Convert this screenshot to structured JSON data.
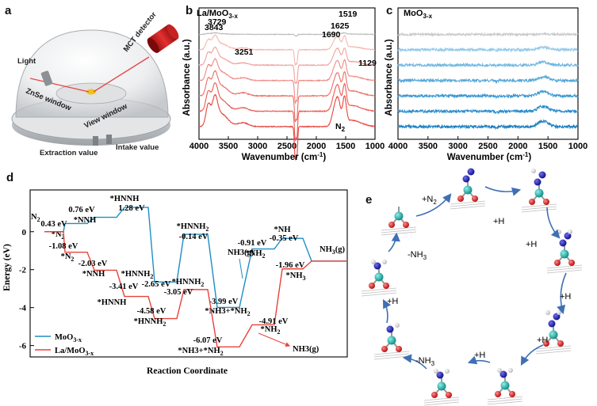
{
  "panels": {
    "a": "a",
    "b": "b",
    "c": "c",
    "d": "d",
    "e": "e"
  },
  "schematic": {
    "light": "Light",
    "znse_window": "ZnSe window",
    "view_window": "View window",
    "mct_detector": "MCT detector",
    "extraction_valve": "Extraction value",
    "intake_valve": "Intake value"
  },
  "colors": {
    "blue": "#1d8fc4",
    "red": "#e8423c",
    "grey": "#bdbdbd",
    "n2_gas": "#1a1aa8",
    "mo_atom": "#20b2aa",
    "o_atom": "#dd2020",
    "h_atom": "#f0f0f0"
  },
  "chart_data": [
    {
      "id": "b",
      "type": "line",
      "title": "La/MoO3-x",
      "title_main": "La/MoO",
      "title_sub": "3-x",
      "xlabel_main": "Wavenumber (cm",
      "xlabel_sup": "-1",
      "xlabel_end": ")",
      "ylabel": "Absorbance (a.u.)",
      "xlim": [
        4000,
        1000
      ],
      "xticks": [
        4000,
        3500,
        3000,
        2500,
        2000,
        1500,
        1000
      ],
      "series_count": 7,
      "series_colors": [
        "#e8423c",
        "#ea5a52",
        "#ec6f66",
        "#ef8a82",
        "#f1a39c",
        "#f4b8b2",
        "#bdbdbd"
      ],
      "series_labels": [
        "",
        "",
        "",
        "",
        "",
        "",
        "N2"
      ],
      "bottom_label_main": "N",
      "bottom_label_sub": "2",
      "peaks": [
        {
          "x": 3843,
          "label": "3843"
        },
        {
          "x": 3729,
          "label": "3729"
        },
        {
          "x": 3251,
          "label": "3251"
        },
        {
          "x": 1690,
          "label": "1690"
        },
        {
          "x": 1625,
          "label": "1625"
        },
        {
          "x": 1519,
          "label": "1519"
        },
        {
          "x": 1129,
          "label": "1129"
        }
      ]
    },
    {
      "id": "c",
      "type": "line",
      "title": "MoO3-x",
      "title_main": "MoO",
      "title_sub": "3-x",
      "xlabel_main": "Wavenumber (cm",
      "xlabel_sup": "-1",
      "xlabel_end": ")",
      "ylabel": "Absorbance (a.u.)",
      "xlim": [
        4000,
        1000
      ],
      "xticks": [
        4000,
        3500,
        3000,
        2500,
        2000,
        1500,
        1000
      ],
      "series_count": 7,
      "series_colors": [
        "#1a7fc0",
        "#2a8ccb",
        "#3b98d2",
        "#55a7da",
        "#72b7e1",
        "#93c9e9",
        "#c9c9c9"
      ]
    },
    {
      "id": "d",
      "type": "line",
      "xlabel": "Reaction Coordinate",
      "ylabel": "Energy (eV)",
      "ylim": [
        -6.6,
        2.2
      ],
      "yticks": [
        0,
        -2,
        -4,
        -6
      ],
      "start_label": "N2(g)",
      "start_label_main": "N",
      "start_label_sub": "2",
      "start_label_end": "(g)",
      "end_label": "NH3(g)",
      "end_label_main": "NH",
      "end_label_sub": "3",
      "end_label_end": "(g)",
      "legend": [
        {
          "name": "MoO3-x",
          "main": "MoO",
          "sub": "3-x",
          "color": "#1d8fc4"
        },
        {
          "name": "La/MoO3-x",
          "main": "La/MoO",
          "sub": "3-x",
          "color": "#e8423c"
        }
      ],
      "series": [
        {
          "name": "MoO3-x",
          "color": "#1d8fc4",
          "levels": [
            {
              "x": 1,
              "e": 0.0,
              "energy": "",
              "state": "",
              "sub": ""
            },
            {
              "x": 2,
              "e": 0.43,
              "energy": "0.43 eV",
              "state": "*N",
              "sub": "2"
            },
            {
              "x": 3,
              "e": 0.76,
              "energy": "0.76 eV",
              "state": "*NNH",
              "sub": ""
            },
            {
              "x": 4,
              "e": 1.28,
              "energy": "1.28 eV",
              "state": "*HNNH",
              "sub": ""
            },
            {
              "x": 5,
              "e": -2.65,
              "energy": "-2.65 eV",
              "state": "*HNNH",
              "sub": "2"
            },
            {
              "x": 6,
              "e": -0.14,
              "energy": "-0.14 eV",
              "state": "*HNNH",
              "sub": "2"
            },
            {
              "x": 7,
              "e": -3.99,
              "energy": "-3.99 eV",
              "state": "*NH3+*NH",
              "sub": "2"
            },
            {
              "x": 8,
              "e": -0.91,
              "energy": "-0.91 eV",
              "state": "*NH",
              "sub": "2"
            },
            {
              "x": 9,
              "e": -0.35,
              "energy": "-0.35 eV",
              "state": "*NH",
              "sub": ""
            },
            {
              "x": 10,
              "e": -1.55,
              "energy": "",
              "state": "",
              "sub": ""
            }
          ],
          "side_label": "NH3(g)"
        },
        {
          "name": "La/MoO3-x",
          "color": "#e8423c",
          "levels": [
            {
              "x": 1,
              "e": 0.0,
              "energy": "",
              "state": "",
              "sub": ""
            },
            {
              "x": 2,
              "e": -1.08,
              "energy": "-1.08 eV",
              "state": "*N",
              "sub": "2"
            },
            {
              "x": 3,
              "e": -2.03,
              "energy": "-2.03 eV",
              "state": "*NNH",
              "sub": ""
            },
            {
              "x": 4,
              "e": -3.41,
              "energy": "-3.41 eV",
              "state": "*HNNH",
              "sub": ""
            },
            {
              "x": 5,
              "e": -4.58,
              "energy": "-4.58 eV",
              "state": "*HNNH",
              "sub": "2"
            },
            {
              "x": 6,
              "e": -3.05,
              "energy": "-3.05 eV",
              "state": "*HNNH",
              "sub": "2"
            },
            {
              "x": 7,
              "e": -6.07,
              "energy": "-6.07 eV",
              "state": "*NH3+*NH",
              "sub": "2"
            },
            {
              "x": 8,
              "e": -4.91,
              "energy": "-4.91 eV",
              "state": "*NH",
              "sub": "2"
            },
            {
              "x": 9,
              "e": -1.96,
              "energy": "-1.96 eV",
              "state": "*NH",
              "sub": "3"
            },
            {
              "x": 10,
              "e": -1.55,
              "energy": "",
              "state": "",
              "sub": ""
            }
          ],
          "side_label": "NH3(g)"
        }
      ]
    },
    {
      "id": "e",
      "type": "diagram",
      "steps": [
        {
          "label": "+N2",
          "main": "+N",
          "sub": "2"
        },
        {
          "label": "+H"
        },
        {
          "label": "+H"
        },
        {
          "label": "+H"
        },
        {
          "label": "+H"
        },
        {
          "label": "+H"
        },
        {
          "label": "-NH3",
          "main": "-NH",
          "sub": "3"
        },
        {
          "label": "+H"
        },
        {
          "label": "-NH3",
          "main": "-NH",
          "sub": "3"
        }
      ]
    }
  ]
}
